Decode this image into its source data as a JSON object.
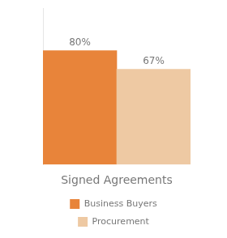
{
  "chart_data": {
    "type": "bar",
    "xlabel": "Signed Agreements",
    "categories": [
      "Business Buyers",
      "Procurement"
    ],
    "values": [
      80,
      67
    ],
    "value_labels": [
      "80%",
      "67%"
    ],
    "colors": [
      "#E8843A",
      "#EEC9A3"
    ],
    "ylim": [
      0,
      110
    ],
    "data_labels": true,
    "legend": "bottom",
    "grid": false,
    "tick_labels": false
  }
}
